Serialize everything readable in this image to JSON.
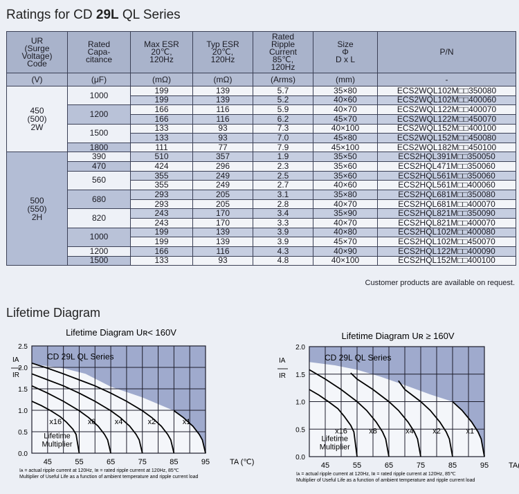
{
  "page": {
    "title_pre": "Ratings for CD ",
    "title_bold": "29L",
    "title_post": " QL Series",
    "note": "Customer products are available on request.",
    "lifetime_title": "Lifetime Diagram"
  },
  "table": {
    "headers": [
      "UR (Surge Voltage) Code",
      "Rated Capa-citance",
      "Max ESR 20℃, 120Hz",
      "Typ ESR 20℃, 120Hz",
      "Rated Ripple Current 85℃, 120Hz",
      "Size Φ D x L",
      "P/N"
    ],
    "header_lines": [
      [
        "UR",
        "(Surge",
        "Voltage)",
        "Code"
      ],
      [
        "Rated",
        "Capa-",
        "citance"
      ],
      [
        "Max ESR",
        "20℃,",
        "120Hz"
      ],
      [
        "Typ ESR",
        "20℃,",
        "120Hz"
      ],
      [
        "Rated",
        "Ripple",
        "Current",
        "85℃,",
        "120Hz"
      ],
      [
        "Size",
        "Φ",
        "D x L"
      ],
      [
        "P/N"
      ]
    ],
    "units": [
      "(V)",
      "(μF)",
      "(mΩ)",
      "(mΩ)",
      "(Arms)",
      "(mm)",
      "-"
    ],
    "groups": [
      {
        "code": [
          "450",
          "(500)",
          "2W"
        ],
        "caps": [
          {
            "cap": "1000",
            "rows": [
              [
                "199",
                "139",
                "5.7",
                "35×80",
                "ECS2WQL102M□□350080"
              ],
              [
                "199",
                "139",
                "5.2",
                "40×60",
                "ECS2WQL102M□□400060"
              ]
            ]
          },
          {
            "cap": "1200",
            "rows": [
              [
                "166",
                "116",
                "5.9",
                "40×70",
                "ECS2WQL122M□□400070"
              ],
              [
                "166",
                "116",
                "6.2",
                "45×70",
                "ECS2WQL122M□□450070"
              ]
            ]
          },
          {
            "cap": "1500",
            "rows": [
              [
                "133",
                "93",
                "7.3",
                "40×100",
                "ECS2WQL152M□□400100"
              ],
              [
                "133",
                "93",
                "7.0",
                "45×80",
                "ECS2WQL152M□□450080"
              ]
            ]
          },
          {
            "cap": "1800",
            "rows": [
              [
                "111",
                "77",
                "7.9",
                "45×100",
                "ECS2WQL182M□□450100"
              ]
            ]
          }
        ]
      },
      {
        "code": [
          "500",
          "(550)",
          "2H"
        ],
        "caps": [
          {
            "cap": "390",
            "rows": [
              [
                "510",
                "357",
                "1.9",
                "35×50",
                "ECS2HQL391M□□350050"
              ]
            ]
          },
          {
            "cap": "470",
            "rows": [
              [
                "424",
                "296",
                "2.3",
                "35×60",
                "ECS2HQL471M□□350060"
              ]
            ]
          },
          {
            "cap": "560",
            "rows": [
              [
                "355",
                "249",
                "2.5",
                "35×60",
                "ECS2HQL561M□□350060"
              ],
              [
                "355",
                "249",
                "2.7",
                "40×60",
                "ECS2HQL561M□□400060"
              ]
            ]
          },
          {
            "cap": "680",
            "rows": [
              [
                "293",
                "205",
                "3.1",
                "35×80",
                "ECS2HQL681M□□350080"
              ],
              [
                "293",
                "205",
                "2.8",
                "40×70",
                "ECS2HQL681M□□400070"
              ]
            ]
          },
          {
            "cap": "820",
            "rows": [
              [
                "243",
                "170",
                "3.4",
                "35×90",
                "ECS2HQL821M□□350090"
              ],
              [
                "243",
                "170",
                "3.3",
                "40×70",
                "ECS2HQL821M□□400070"
              ]
            ]
          },
          {
            "cap": "1000",
            "rows": [
              [
                "199",
                "139",
                "3.9",
                "40×80",
                "ECS2HQL102M□□400080"
              ],
              [
                "199",
                "139",
                "3.9",
                "45×70",
                "ECS2HQL102M□□450070"
              ]
            ]
          },
          {
            "cap": "1200",
            "rows": [
              [
                "166",
                "116",
                "4.3",
                "40×90",
                "ECS2HQL122M□□400090"
              ]
            ]
          },
          {
            "cap": "1500",
            "rows": [
              [
                "133",
                "93",
                "4.8",
                "40×100",
                "ECS2HQL152M□□400100"
              ]
            ]
          }
        ]
      }
    ]
  },
  "colors": {
    "shade": "#8f9cc4",
    "grid": "#1c1c2a",
    "curve": "#000000"
  },
  "chart_data": [
    {
      "type": "line",
      "title": "Lifetime Diagram Uʀ< 160V",
      "series_label": "CD 29L QL Series",
      "multiplier_label": [
        "Lifetime",
        "Multiplier"
      ],
      "ylabel_top": "IA",
      "ylabel_bottom": "IR",
      "xlabel": "TA (℃)",
      "xlim": [
        40,
        95
      ],
      "ylim": [
        0,
        2.5
      ],
      "xticks": [
        "45",
        "55",
        "65",
        "75",
        "85",
        "95"
      ],
      "yticks": [
        "0.0",
        "0.5",
        "1.0",
        "1.5",
        "2.0",
        "2.5"
      ],
      "grid": true,
      "footnotes": [
        "Iᴀ = actual ripple current at 120Hz, Iʀ = rated ripple current at 120Hz, 85℃",
        "Multiplier of Useful Life as a function of ambient temperature and ripple current load"
      ],
      "series": [
        {
          "name": "x16",
          "x": [
            40,
            43,
            46,
            49,
            51,
            53,
            54,
            55
          ],
          "y": [
            1.21,
            1.11,
            0.99,
            0.85,
            0.72,
            0.56,
            0.44,
            0
          ]
        },
        {
          "name": "x8",
          "x": [
            40,
            45,
            50,
            55,
            58,
            61,
            63,
            64,
            65
          ],
          "y": [
            1.57,
            1.4,
            1.21,
            0.99,
            0.83,
            0.63,
            0.44,
            0.31,
            0
          ]
        },
        {
          "name": "x4",
          "x": [
            40,
            45,
            50,
            55,
            60,
            65,
            68,
            71,
            73,
            74,
            75
          ],
          "y": [
            1.85,
            1.71,
            1.57,
            1.4,
            1.21,
            0.99,
            0.83,
            0.63,
            0.44,
            0.31,
            0
          ]
        },
        {
          "name": "x2",
          "x": [
            40,
            45,
            50,
            55,
            60,
            65,
            70,
            75,
            78,
            81,
            83,
            84,
            85
          ],
          "y": [
            2.1,
            1.98,
            1.85,
            1.71,
            1.57,
            1.4,
            1.21,
            0.99,
            0.83,
            0.63,
            0.44,
            0.31,
            0
          ]
        },
        {
          "name": "x1",
          "x": [
            85,
            88,
            91,
            93,
            94,
            95
          ],
          "y": [
            0.99,
            0.83,
            0.63,
            0.44,
            0.31,
            0
          ]
        }
      ],
      "shade_boundary": {
        "x": [
          40,
          50,
          57,
          65,
          75,
          85
        ],
        "y": [
          2.08,
          1.98,
          1.85,
          1.55,
          1.3,
          0.99
        ]
      },
      "label_pos": {
        "x": [
          47.5,
          59,
          67.5,
          78,
          89
        ],
        "y": 0.68
      }
    },
    {
      "type": "line",
      "title": "Lifetime Diagram Uʀ ≥ 160V",
      "series_label": "CD 29L QL Series",
      "multiplier_label": [
        "Lifetime",
        "Multiplier"
      ],
      "ylabel_top": "IA",
      "ylabel_bottom": "IR",
      "xlabel": "TA(℃)",
      "xlim": [
        40,
        95
      ],
      "ylim": [
        0,
        2.0
      ],
      "xticks": [
        "45",
        "55",
        "65",
        "75",
        "85",
        "95"
      ],
      "yticks": [
        "0.0",
        "0.5",
        "1.0",
        "1.5",
        "2.0"
      ],
      "grid": true,
      "footnotes": [
        "Iᴀ = actual ripple current at 120Hz, Iʀ = rated ripple current at 120Hz, 85℃",
        "Multiplier of Useful Life as a function of ambient temperature and ripple current load"
      ],
      "series": [
        {
          "name": "x16",
          "x": [
            40,
            43,
            46,
            49,
            51,
            53,
            54,
            55
          ],
          "y": [
            1.22,
            1.12,
            1.0,
            0.87,
            0.73,
            0.57,
            0.45,
            0
          ]
        },
        {
          "name": "x8",
          "x": [
            40,
            45,
            50,
            55,
            58,
            61,
            63,
            64,
            65
          ],
          "y": [
            1.58,
            1.41,
            1.22,
            1.0,
            0.84,
            0.63,
            0.45,
            0.32,
            0
          ]
        },
        {
          "name": "x4",
          "x": [
            53,
            55,
            60,
            65,
            68,
            71,
            73,
            74,
            75
          ],
          "y": [
            1.52,
            1.41,
            1.22,
            1.0,
            0.84,
            0.63,
            0.45,
            0.32,
            0
          ]
        },
        {
          "name": "x2",
          "x": [
            68,
            70,
            75,
            78,
            81,
            83,
            84,
            85
          ],
          "y": [
            1.38,
            1.22,
            1.0,
            0.84,
            0.63,
            0.45,
            0.32,
            0
          ]
        },
        {
          "name": "x1",
          "x": [
            85,
            88,
            91,
            93,
            94,
            95
          ],
          "y": [
            1.0,
            0.84,
            0.63,
            0.45,
            0.32,
            0
          ]
        }
      ],
      "shade_boundary": {
        "x": [
          40,
          48,
          55,
          62,
          70,
          78,
          85
        ],
        "y": [
          1.72,
          1.66,
          1.58,
          1.46,
          1.3,
          1.13,
          1.0
        ]
      },
      "label_pos": {
        "x": [
          50,
          60,
          71.5,
          80,
          90.5
        ],
        "y": 0.42
      }
    }
  ]
}
